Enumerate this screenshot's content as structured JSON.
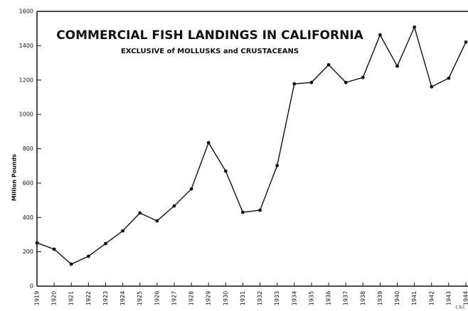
{
  "chart_data": {
    "type": "line",
    "title": "COMMERCIAL FISH LANDINGS IN CALIFORNIA",
    "subtitle": "EXCLUSIVE of MOLLUSKS and CRUSTACEANS",
    "y_label": "Million Pounds",
    "annotation": "C.R.C.",
    "categories": [
      "1919",
      "1920",
      "1921",
      "1922",
      "1923",
      "1924",
      "1925",
      "1926",
      "1927",
      "1928",
      "1929",
      "1930",
      "1931",
      "1932",
      "1933",
      "1934",
      "1935",
      "1936",
      "1937",
      "1938",
      "1939",
      "1940",
      "1941",
      "1942",
      "1943",
      "1944"
    ],
    "values": [
      252,
      215,
      128,
      174,
      248,
      322,
      426,
      380,
      467,
      566,
      835,
      670,
      430,
      442,
      702,
      1178,
      1186,
      1289,
      1186,
      1215,
      1463,
      1281,
      1508,
      1161,
      1211,
      1421
    ],
    "color": "#111111",
    "ylim": [
      0,
      1600
    ],
    "yticks": [
      0,
      200,
      400,
      600,
      800,
      1000,
      1200,
      1400,
      1600
    ],
    "grid": false
  }
}
